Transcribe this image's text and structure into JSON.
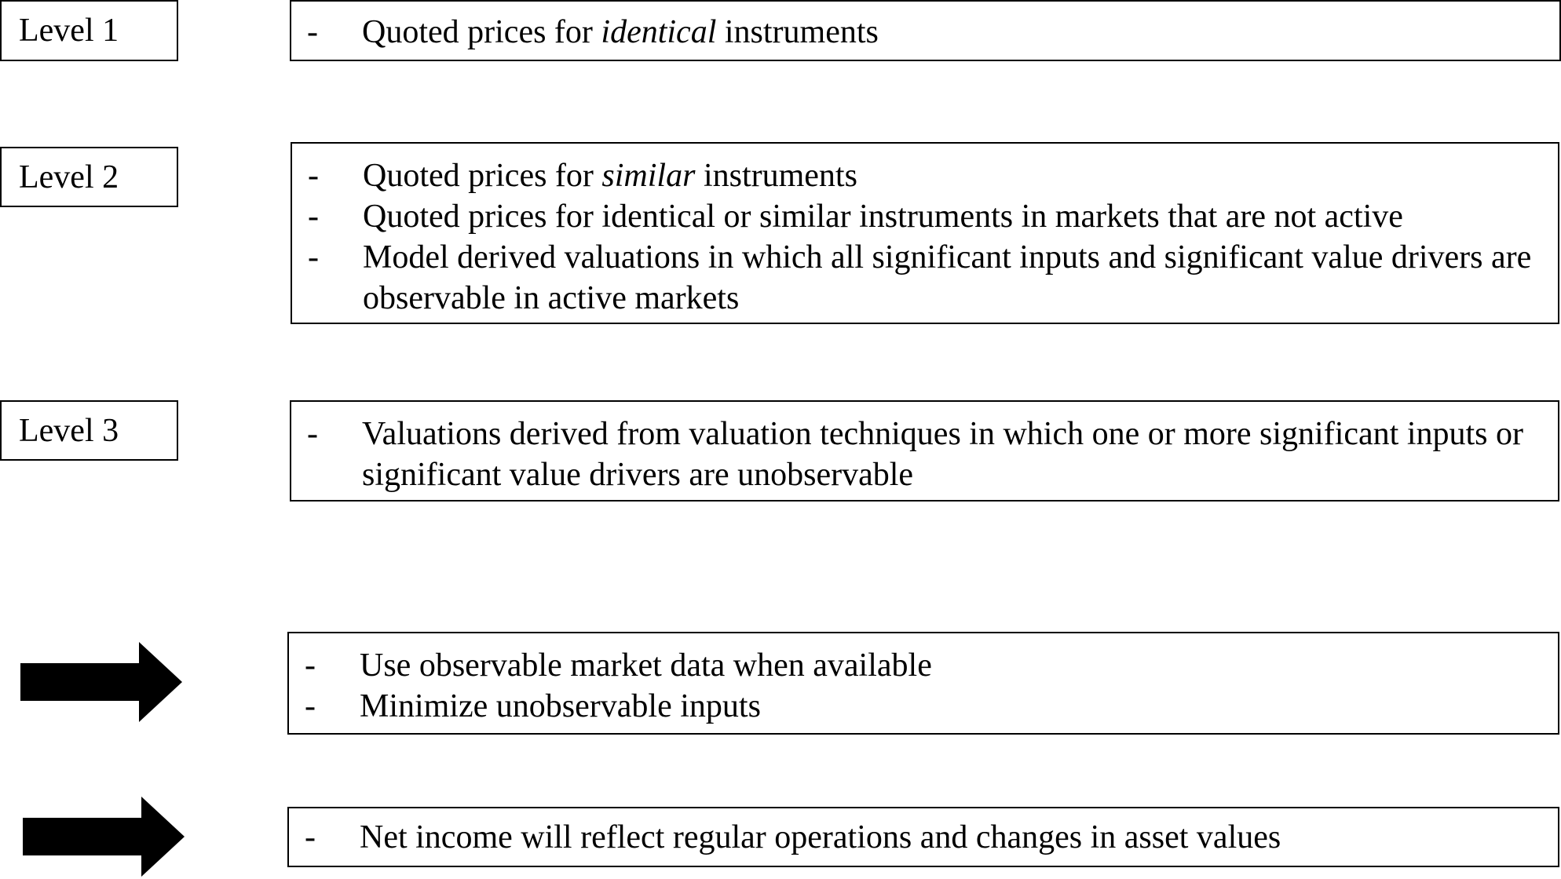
{
  "levels": [
    {
      "label": "Level 1",
      "items": [
        {
          "pre": "Quoted prices for ",
          "em": "identical",
          "post": " instruments"
        }
      ]
    },
    {
      "label": "Level 2",
      "items": [
        {
          "pre": "Quoted prices for ",
          "em": "similar",
          "post": " instruments"
        },
        {
          "pre": "Quoted prices for identical or similar instruments in markets that are not active",
          "em": "",
          "post": ""
        },
        {
          "pre": "Model derived valuations in which all significant inputs and significant value drivers are observable in active markets",
          "em": "",
          "post": ""
        }
      ]
    },
    {
      "label": "Level 3",
      "items": [
        {
          "pre": "Valuations derived from valuation techniques in which one or more significant inputs or significant value drivers are unobservable",
          "em": "",
          "post": ""
        }
      ]
    }
  ],
  "principles": [
    {
      "icon": "right-arrow-icon",
      "items": [
        {
          "pre": "Use observable market data when available",
          "em": "",
          "post": ""
        },
        {
          "pre": "Minimize unobservable inputs",
          "em": "",
          "post": ""
        }
      ]
    },
    {
      "icon": "right-arrow-icon",
      "items": [
        {
          "pre": "Net income will reflect regular operations and changes in asset values",
          "em": "",
          "post": ""
        }
      ]
    }
  ],
  "bullet": "-",
  "colors": {
    "border": "#000000",
    "arrow": "#000000",
    "background": "#ffffff"
  }
}
